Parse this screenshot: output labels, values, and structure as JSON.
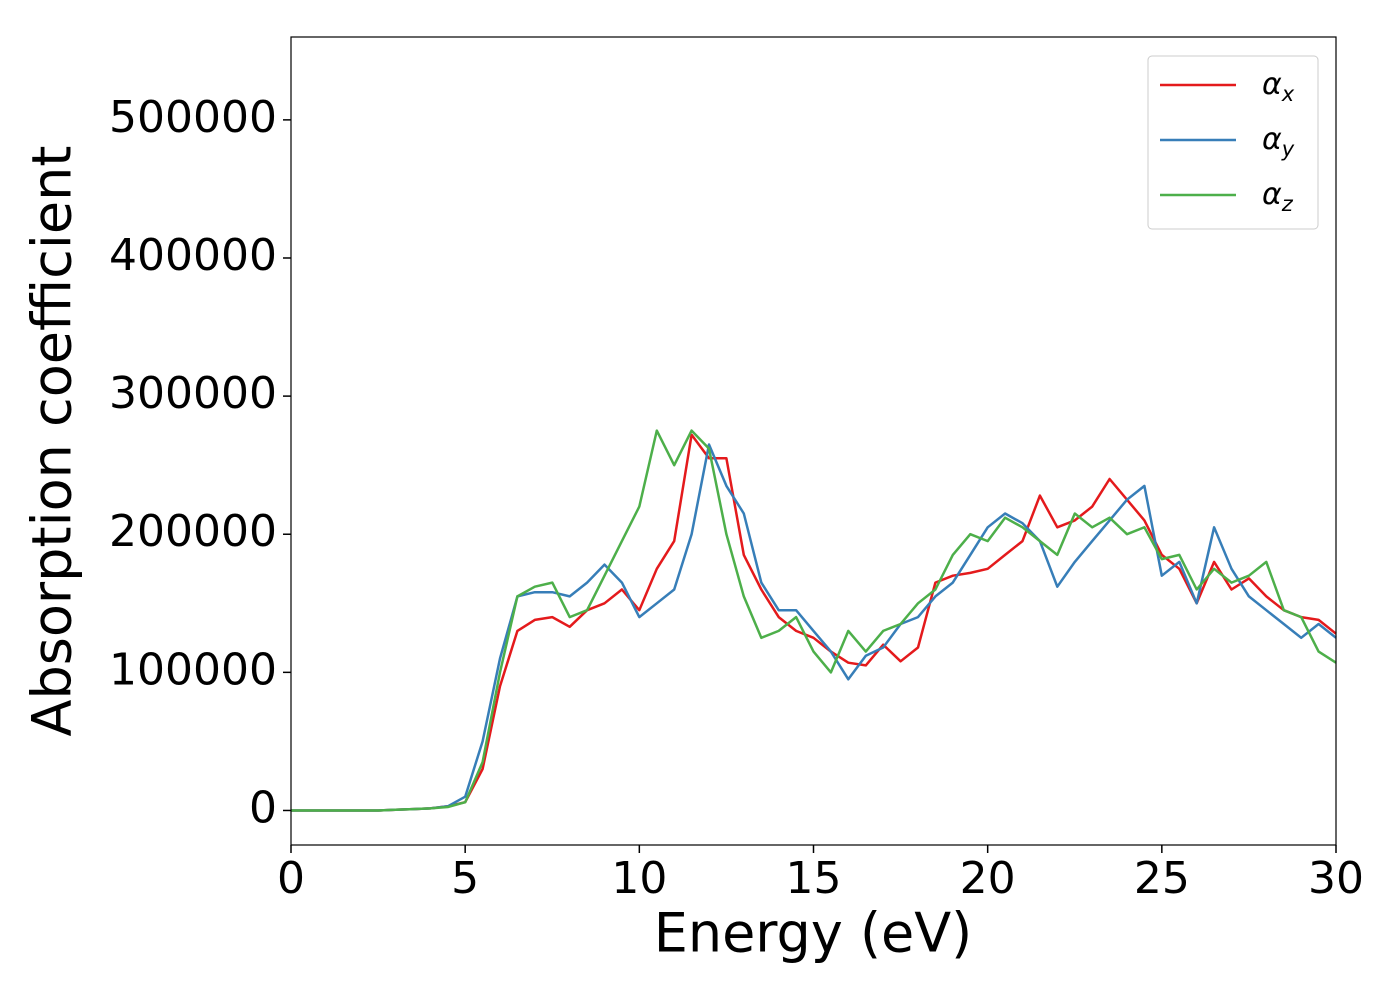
{
  "chart_data": {
    "type": "line",
    "xlabel": "Energy (eV)",
    "ylabel": "Absorption coefficient",
    "x": [
      0,
      0.5,
      1,
      1.5,
      2,
      2.5,
      3,
      3.5,
      4,
      4.5,
      5,
      5.5,
      6,
      6.5,
      7,
      7.5,
      8,
      8.5,
      9,
      9.5,
      10,
      10.5,
      11,
      11.5,
      12,
      12.5,
      13,
      13.5,
      14,
      14.5,
      15,
      15.5,
      16,
      16.5,
      17,
      17.5,
      18,
      18.5,
      19,
      19.5,
      20,
      20.5,
      21,
      21.5,
      22,
      22.5,
      23,
      23.5,
      24,
      24.5,
      25,
      25.5,
      26,
      26.5,
      27,
      27.5,
      28,
      28.5,
      29,
      29.5,
      30
    ],
    "series": [
      {
        "name": "αx",
        "color": "#e41a1c",
        "values": [
          0,
          0,
          0,
          0,
          0,
          0,
          500,
          1000,
          1500,
          3000,
          6000,
          30000,
          90000,
          130000,
          138000,
          140000,
          133000,
          145000,
          150000,
          160000,
          145000,
          175000,
          195000,
          272000,
          255000,
          255000,
          185000,
          160000,
          140000,
          130000,
          125000,
          115000,
          107000,
          105000,
          120000,
          108000,
          118000,
          165000,
          170000,
          172000,
          175000,
          185000,
          195000,
          228000,
          205000,
          210000,
          220000,
          240000,
          225000,
          210000,
          185000,
          175000,
          150000,
          180000,
          160000,
          168000,
          155000,
          145000,
          140000,
          138000,
          128000
        ]
      },
      {
        "name": "αy",
        "color": "#377eb8",
        "values": [
          0,
          0,
          0,
          0,
          0,
          0,
          500,
          1000,
          1500,
          3000,
          10000,
          50000,
          110000,
          155000,
          158000,
          158000,
          155000,
          165000,
          178000,
          165000,
          140000,
          150000,
          160000,
          200000,
          265000,
          235000,
          215000,
          165000,
          145000,
          145000,
          130000,
          115000,
          95000,
          112000,
          118000,
          135000,
          140000,
          155000,
          165000,
          185000,
          205000,
          215000,
          208000,
          195000,
          162000,
          180000,
          195000,
          210000,
          225000,
          235000,
          170000,
          180000,
          150000,
          205000,
          175000,
          155000,
          145000,
          135000,
          125000,
          135000,
          125000
        ]
      },
      {
        "name": "αz",
        "color": "#4daf4a",
        "values": [
          0,
          0,
          0,
          0,
          0,
          0,
          500,
          1000,
          1500,
          2500,
          6000,
          35000,
          100000,
          155000,
          162000,
          165000,
          140000,
          145000,
          170000,
          195000,
          220000,
          275000,
          250000,
          275000,
          262000,
          200000,
          155000,
          125000,
          130000,
          140000,
          115000,
          100000,
          130000,
          115000,
          130000,
          135000,
          150000,
          160000,
          185000,
          200000,
          195000,
          212000,
          205000,
          195000,
          185000,
          215000,
          205000,
          212000,
          200000,
          205000,
          182000,
          185000,
          160000,
          175000,
          165000,
          170000,
          180000,
          145000,
          140000,
          115000,
          107000
        ]
      }
    ],
    "xlim": [
      0,
      30
    ],
    "xticks": [
      0,
      5,
      10,
      15,
      20,
      25,
      30
    ],
    "ylim": [
      -25000,
      560000
    ],
    "yticks": [
      0,
      100000,
      200000,
      300000,
      400000,
      500000
    ],
    "legend": "upper right"
  }
}
